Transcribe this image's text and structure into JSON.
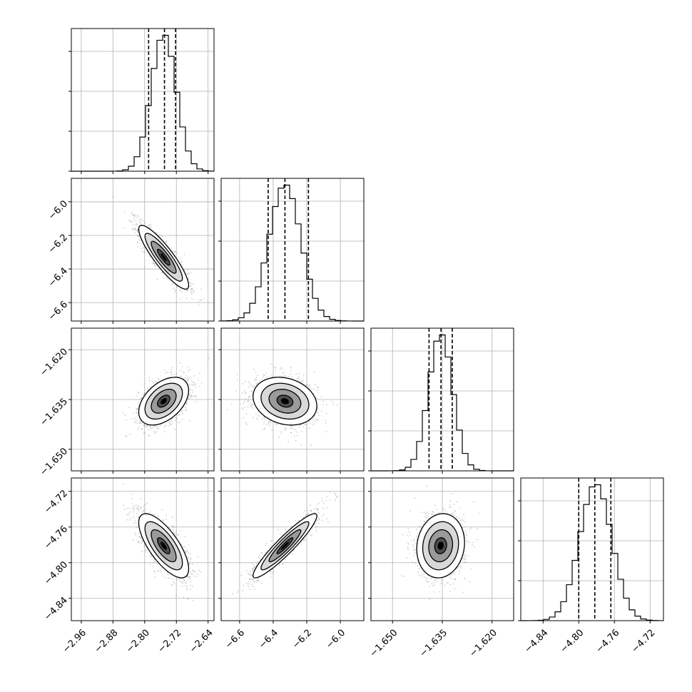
{
  "chart_data": {
    "type": "scatter",
    "title": "",
    "plot_kind": "corner plot (1D histograms on diagonal, 2D density contours off-diagonal)",
    "grid": true,
    "parameters": [
      {
        "id": "p0",
        "mean": -2.752,
        "std": 0.0315,
        "q16": -2.79,
        "q50": -2.75,
        "q84": -2.722,
        "range": [
          -2.985,
          -2.625
        ],
        "ticks": [
          "−2.96",
          "−2.88",
          "−2.80",
          "−2.72",
          "−2.64"
        ],
        "tick_values": [
          -2.96,
          -2.88,
          -2.8,
          -2.72,
          -2.64
        ]
      },
      {
        "id": "p1",
        "mean": -6.33,
        "std": 0.095,
        "q16": -6.43,
        "q50": -6.33,
        "q84": -6.19,
        "range": [
          -6.71,
          -5.86
        ],
        "ticks": [
          "−6.6",
          "−6.4",
          "−6.2",
          "−6.0"
        ],
        "tick_values": [
          -6.6,
          -6.4,
          -6.2,
          -6.0
        ]
      },
      {
        "id": "p2",
        "mean": -1.6355,
        "std": 0.0036,
        "q16": -1.639,
        "q50": -1.6354,
        "q84": -1.632,
        "range": [
          -1.6565,
          -1.6135
        ],
        "ticks": [
          "−1.650",
          "−1.635",
          "−1.620"
        ],
        "tick_values": [
          -1.65,
          -1.635,
          -1.62
        ]
      },
      {
        "id": "p3",
        "mean": -4.781,
        "std": 0.018,
        "q16": -4.8,
        "q50": -4.782,
        "q84": -4.764,
        "range": [
          -4.865,
          -4.705
        ],
        "ticks": [
          "−4.84",
          "−4.80",
          "−4.76",
          "−4.72"
        ],
        "tick_values": [
          -4.84,
          -4.8,
          -4.76,
          -4.72
        ]
      }
    ],
    "correlations": [
      {
        "x": "p0",
        "y": "p1",
        "rho": -0.88
      },
      {
        "x": "p0",
        "y": "p2",
        "rho": 0.45
      },
      {
        "x": "p1",
        "y": "p2",
        "rho": -0.2
      },
      {
        "x": "p0",
        "y": "p3",
        "rho": -0.72
      },
      {
        "x": "p1",
        "y": "p3",
        "rho": 0.93
      },
      {
        "x": "p2",
        "y": "p3",
        "rho": 0.1
      }
    ],
    "contour_levels_sigma": [
      0.5,
      1.0,
      1.5,
      2.0
    ],
    "quantiles": [
      0.16,
      0.5,
      0.84
    ],
    "histogram_bins": 25
  }
}
